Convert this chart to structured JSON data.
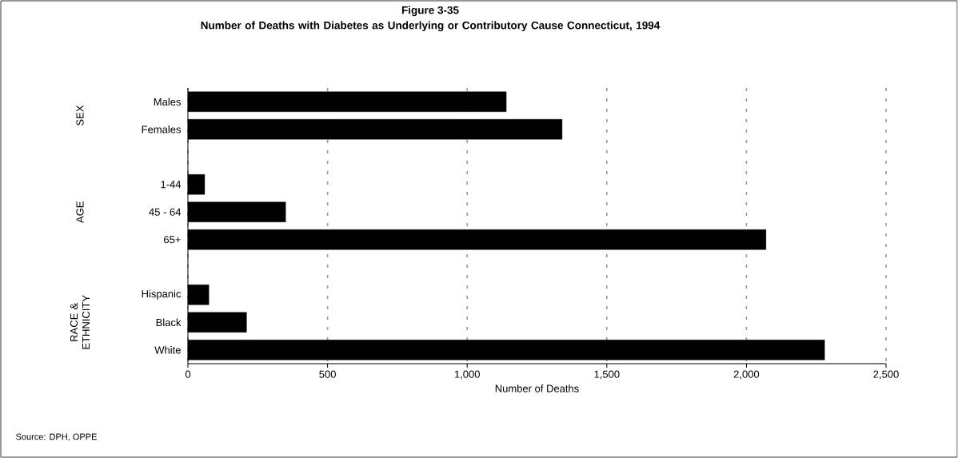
{
  "chart_data": {
    "type": "bar",
    "orientation": "horizontal",
    "title": "Figure 3-35",
    "subtitle": "Number of Deaths with Diabetes as Underlying or Contributory Cause Connecticut, 1994",
    "xlabel": "Number of Deaths",
    "categories": [
      "Males",
      "Females",
      null,
      "1-44",
      "45 - 64",
      "65+",
      null,
      "Hispanic",
      "Black",
      "White"
    ],
    "values": [
      1140,
      1340,
      null,
      60,
      350,
      2070,
      null,
      75,
      210,
      2280
    ],
    "color": "#000000",
    "xlim": [
      0,
      2500
    ],
    "xticks": [
      0,
      500,
      {
        "value": 1000,
        "label": "1,000"
      },
      {
        "value": 1500,
        "label": "1,500"
      },
      {
        "value": 2000,
        "label": "2,000"
      },
      {
        "value": 2500,
        "label": "2,500"
      }
    ],
    "grid": "x",
    "annotations": [
      "SEX",
      "AGE",
      "RACE & ETHNICITY",
      "Source: DPH, OPPE"
    ]
  }
}
